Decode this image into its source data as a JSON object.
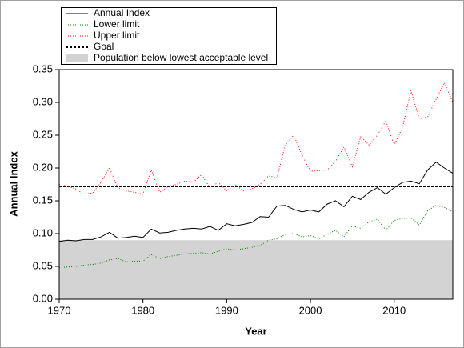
{
  "chart_data": {
    "type": "line",
    "x_label": "Year",
    "y_label": "Annual Index",
    "x": [
      1970,
      1971,
      1972,
      1973,
      1974,
      1975,
      1976,
      1977,
      1978,
      1979,
      1980,
      1981,
      1982,
      1983,
      1984,
      1985,
      1986,
      1987,
      1988,
      1989,
      1990,
      1991,
      1992,
      1993,
      1994,
      1995,
      1996,
      1997,
      1998,
      1999,
      2000,
      2001,
      2002,
      2003,
      2004,
      2005,
      2006,
      2007,
      2008,
      2009,
      2010,
      2011,
      2012,
      2013,
      2014,
      2015,
      2016,
      2017
    ],
    "series": [
      {
        "name": "Annual Index",
        "color": "#000000",
        "dotted": false,
        "values": [
          0.088,
          0.09,
          0.089,
          0.091,
          0.091,
          0.095,
          0.102,
          0.093,
          0.094,
          0.096,
          0.094,
          0.107,
          0.101,
          0.102,
          0.105,
          0.107,
          0.108,
          0.107,
          0.111,
          0.105,
          0.115,
          0.112,
          0.114,
          0.117,
          0.126,
          0.125,
          0.142,
          0.143,
          0.137,
          0.133,
          0.136,
          0.133,
          0.145,
          0.15,
          0.141,
          0.157,
          0.152,
          0.163,
          0.17,
          0.16,
          0.17,
          0.178,
          0.18,
          0.176,
          0.197,
          0.209,
          0.2,
          0.192
        ]
      },
      {
        "name": "Lower limit",
        "color": "#008000",
        "dotted": true,
        "values": [
          0.048,
          0.049,
          0.05,
          0.052,
          0.053,
          0.055,
          0.06,
          0.062,
          0.057,
          0.058,
          0.058,
          0.068,
          0.062,
          0.065,
          0.067,
          0.069,
          0.07,
          0.071,
          0.069,
          0.073,
          0.077,
          0.075,
          0.077,
          0.079,
          0.082,
          0.09,
          0.092,
          0.099,
          0.1,
          0.095,
          0.097,
          0.092,
          0.099,
          0.105,
          0.095,
          0.112,
          0.108,
          0.118,
          0.122,
          0.105,
          0.12,
          0.123,
          0.124,
          0.113,
          0.135,
          0.143,
          0.14,
          0.133
        ]
      },
      {
        "name": "Upper limit",
        "color": "#ff0000",
        "dotted": true,
        "values": [
          0.175,
          0.172,
          0.168,
          0.16,
          0.162,
          0.178,
          0.2,
          0.17,
          0.165,
          0.163,
          0.16,
          0.197,
          0.163,
          0.172,
          0.175,
          0.18,
          0.178,
          0.19,
          0.17,
          0.178,
          0.165,
          0.175,
          0.165,
          0.168,
          0.175,
          0.188,
          0.185,
          0.235,
          0.25,
          0.22,
          0.195,
          0.196,
          0.197,
          0.21,
          0.232,
          0.202,
          0.248,
          0.235,
          0.25,
          0.272,
          0.235,
          0.262,
          0.318,
          0.275,
          0.278,
          0.305,
          0.33,
          0.3
        ]
      }
    ],
    "goal": {
      "name": "Goal",
      "value": 0.172,
      "color": "#000000"
    },
    "shaded_region": {
      "name": "Population below lowest acceptable level",
      "value": 0.09,
      "color": "#d3d3d3"
    },
    "xlim": [
      1970,
      2017
    ],
    "xticks": [
      1970,
      1980,
      1990,
      2000,
      2010
    ],
    "ylim": [
      0,
      0.35
    ],
    "yticks": [
      {
        "value": 0,
        "label": "0.00"
      },
      0.05,
      {
        "value": 0.1,
        "label": "0.10"
      },
      0.15,
      {
        "value": 0.2,
        "label": "0.20"
      },
      0.25,
      {
        "value": 0.3,
        "label": "0.30"
      },
      0.35
    ]
  }
}
